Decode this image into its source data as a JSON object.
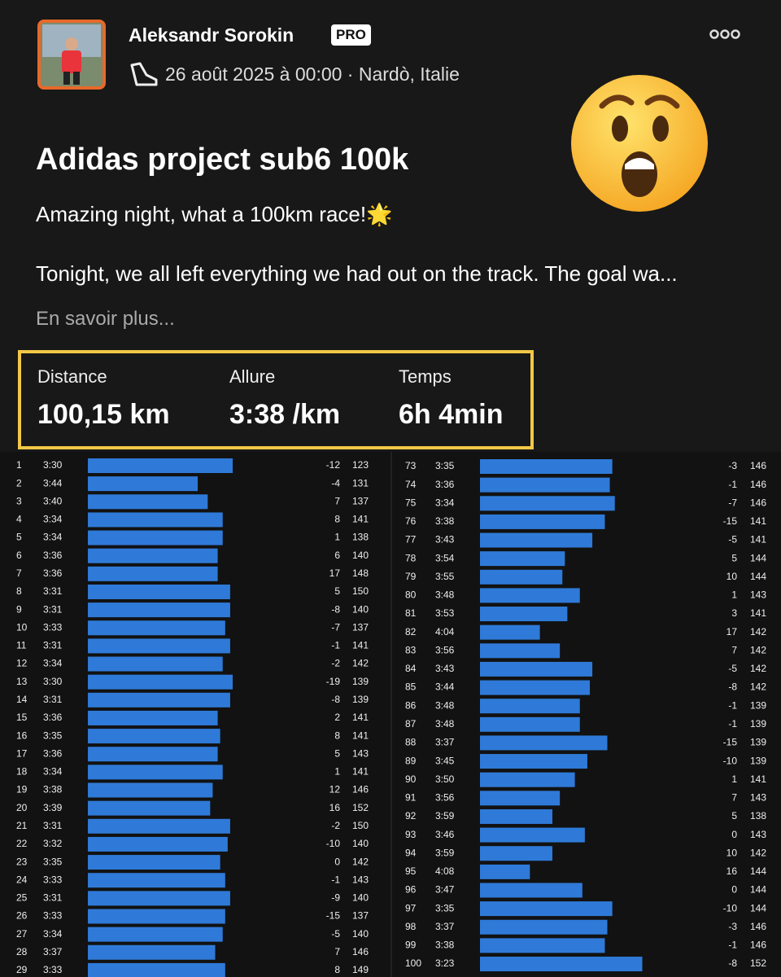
{
  "header": {
    "name": "Aleksandr Sorokin",
    "badge": "PRO",
    "date_location": "26 août 2025 à 00:00 · Nardò, Italie"
  },
  "post": {
    "title": "Adidas project sub6 100k",
    "description": "Amazing night, what a 100km race!🌟",
    "body": "Tonight, we all left everything we had out on the track. The goal wa...",
    "more": "En savoir plus..."
  },
  "stats": [
    {
      "label": "Distance",
      "value": "100,15 km"
    },
    {
      "label": "Allure",
      "value": "3:38 /km"
    },
    {
      "label": "Temps",
      "value": "6h 4min"
    }
  ],
  "splits": {
    "left": [
      {
        "km": 1,
        "pace": "3:30",
        "elev": -12,
        "hr": 123
      },
      {
        "km": 2,
        "pace": "3:44",
        "elev": -4,
        "hr": 131
      },
      {
        "km": 3,
        "pace": "3:40",
        "elev": 7,
        "hr": 137
      },
      {
        "km": 4,
        "pace": "3:34",
        "elev": 8,
        "hr": 141
      },
      {
        "km": 5,
        "pace": "3:34",
        "elev": 1,
        "hr": 138
      },
      {
        "km": 6,
        "pace": "3:36",
        "elev": 6,
        "hr": 140
      },
      {
        "km": 7,
        "pace": "3:36",
        "elev": 17,
        "hr": 148
      },
      {
        "km": 8,
        "pace": "3:31",
        "elev": 5,
        "hr": 150
      },
      {
        "km": 9,
        "pace": "3:31",
        "elev": -8,
        "hr": 140
      },
      {
        "km": 10,
        "pace": "3:33",
        "elev": -7,
        "hr": 137
      },
      {
        "km": 11,
        "pace": "3:31",
        "elev": -1,
        "hr": 141
      },
      {
        "km": 12,
        "pace": "3:34",
        "elev": -2,
        "hr": 142
      },
      {
        "km": 13,
        "pace": "3:30",
        "elev": -19,
        "hr": 139
      },
      {
        "km": 14,
        "pace": "3:31",
        "elev": -8,
        "hr": 139
      },
      {
        "km": 15,
        "pace": "3:36",
        "elev": 2,
        "hr": 141
      },
      {
        "km": 16,
        "pace": "3:35",
        "elev": 8,
        "hr": 141
      },
      {
        "km": 17,
        "pace": "3:36",
        "elev": 5,
        "hr": 143
      },
      {
        "km": 18,
        "pace": "3:34",
        "elev": 1,
        "hr": 141
      },
      {
        "km": 19,
        "pace": "3:38",
        "elev": 12,
        "hr": 146
      },
      {
        "km": 20,
        "pace": "3:39",
        "elev": 16,
        "hr": 152
      },
      {
        "km": 21,
        "pace": "3:31",
        "elev": -2,
        "hr": 150
      },
      {
        "km": 22,
        "pace": "3:32",
        "elev": -10,
        "hr": 140
      },
      {
        "km": 23,
        "pace": "3:35",
        "elev": 0,
        "hr": 142
      },
      {
        "km": 24,
        "pace": "3:33",
        "elev": -1,
        "hr": 143
      },
      {
        "km": 25,
        "pace": "3:31",
        "elev": -9,
        "hr": 140
      },
      {
        "km": 26,
        "pace": "3:33",
        "elev": -15,
        "hr": 137
      },
      {
        "km": 27,
        "pace": "3:34",
        "elev": -5,
        "hr": 140
      },
      {
        "km": 28,
        "pace": "3:37",
        "elev": 7,
        "hr": 146
      },
      {
        "km": 29,
        "pace": "3:33",
        "elev": 8,
        "hr": 149
      }
    ],
    "right": [
      {
        "km": 73,
        "pace": "3:35",
        "elev": -3,
        "hr": 146
      },
      {
        "km": 74,
        "pace": "3:36",
        "elev": -1,
        "hr": 146
      },
      {
        "km": 75,
        "pace": "3:34",
        "elev": -7,
        "hr": 146
      },
      {
        "km": 76,
        "pace": "3:38",
        "elev": -15,
        "hr": 141
      },
      {
        "km": 77,
        "pace": "3:43",
        "elev": -5,
        "hr": 141
      },
      {
        "km": 78,
        "pace": "3:54",
        "elev": 5,
        "hr": 144
      },
      {
        "km": 79,
        "pace": "3:55",
        "elev": 10,
        "hr": 144
      },
      {
        "km": 80,
        "pace": "3:48",
        "elev": 1,
        "hr": 143
      },
      {
        "km": 81,
        "pace": "3:53",
        "elev": 3,
        "hr": 141
      },
      {
        "km": 82,
        "pace": "4:04",
        "elev": 17,
        "hr": 142
      },
      {
        "km": 83,
        "pace": "3:56",
        "elev": 7,
        "hr": 142
      },
      {
        "km": 84,
        "pace": "3:43",
        "elev": -5,
        "hr": 142
      },
      {
        "km": 85,
        "pace": "3:44",
        "elev": -8,
        "hr": 142
      },
      {
        "km": 86,
        "pace": "3:48",
        "elev": -1,
        "hr": 139
      },
      {
        "km": 87,
        "pace": "3:48",
        "elev": -1,
        "hr": 139
      },
      {
        "km": 88,
        "pace": "3:37",
        "elev": -15,
        "hr": 139
      },
      {
        "km": 89,
        "pace": "3:45",
        "elev": -10,
        "hr": 139
      },
      {
        "km": 90,
        "pace": "3:50",
        "elev": 1,
        "hr": 141
      },
      {
        "km": 91,
        "pace": "3:56",
        "elev": 7,
        "hr": 143
      },
      {
        "km": 92,
        "pace": "3:59",
        "elev": 5,
        "hr": 138
      },
      {
        "km": 93,
        "pace": "3:46",
        "elev": 0,
        "hr": 143
      },
      {
        "km": 94,
        "pace": "3:59",
        "elev": 10,
        "hr": 142
      },
      {
        "km": 95,
        "pace": "4:08",
        "elev": 16,
        "hr": 144
      },
      {
        "km": 96,
        "pace": "3:47",
        "elev": 0,
        "hr": 144
      },
      {
        "km": 97,
        "pace": "3:35",
        "elev": -10,
        "hr": 144
      },
      {
        "km": 98,
        "pace": "3:37",
        "elev": -3,
        "hr": 146
      },
      {
        "km": 99,
        "pace": "3:38",
        "elev": -1,
        "hr": 146
      },
      {
        "km": 100,
        "pace": "3:23",
        "elev": -8,
        "hr": 152
      }
    ]
  }
}
